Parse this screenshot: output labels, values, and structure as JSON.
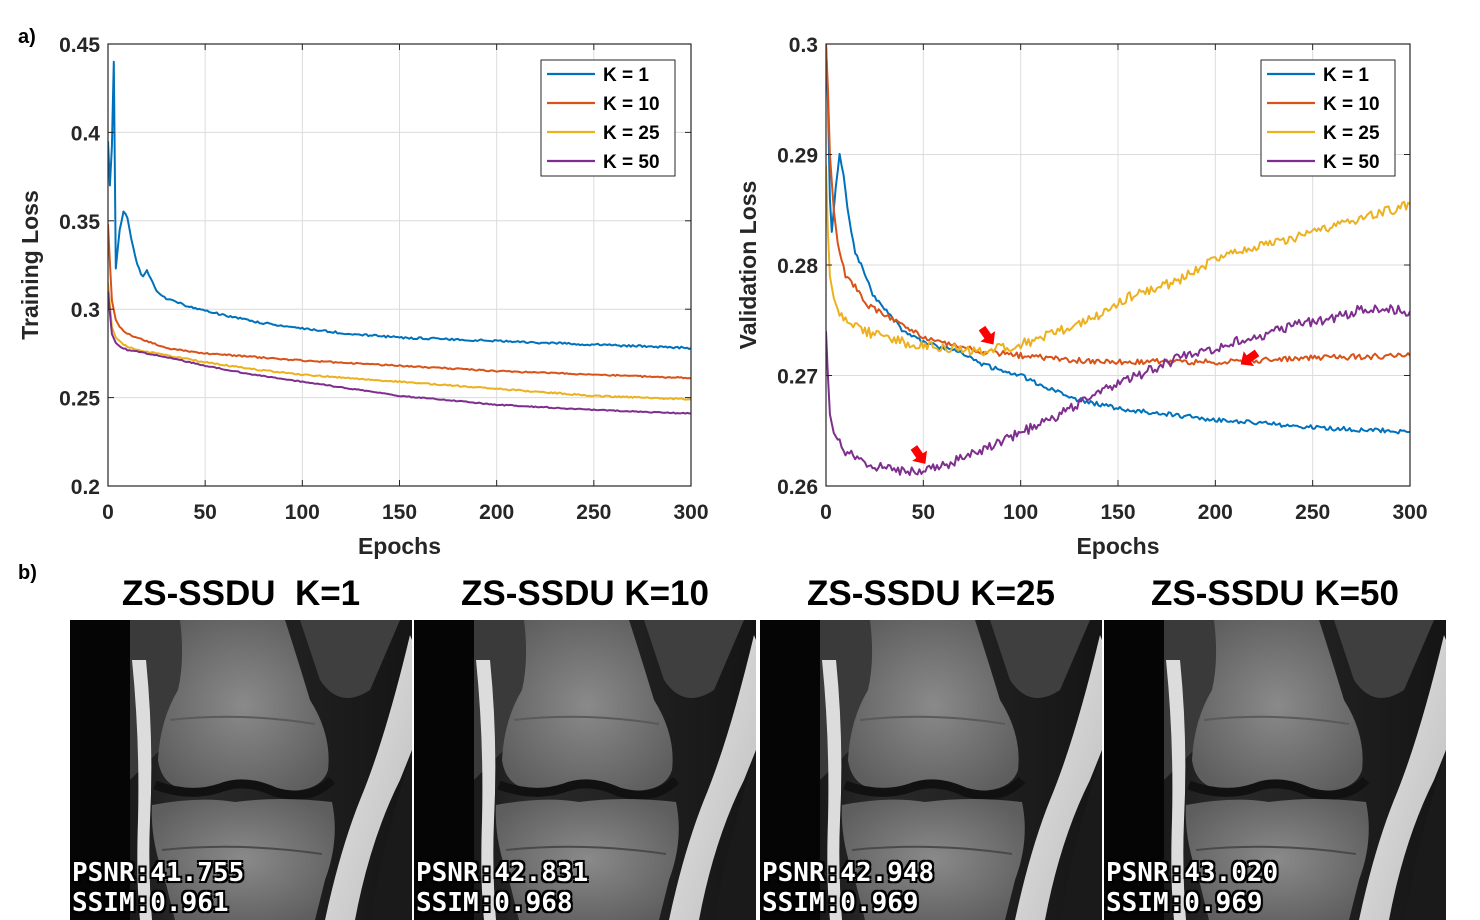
{
  "panels": {
    "a_label": "a)",
    "b_label": "b)"
  },
  "colors": {
    "k1": "#0072BD",
    "k10": "#D95319",
    "k25": "#EDB120",
    "k50": "#7E2F8E",
    "arrow": "#FF0000"
  },
  "chart_data": [
    {
      "type": "line",
      "xlabel": "Epochs",
      "ylabel": "Training  Loss",
      "xlim": [
        0,
        300
      ],
      "ylim": [
        0.2,
        0.45
      ],
      "xticks": [
        0,
        50,
        100,
        150,
        200,
        250,
        300
      ],
      "yticks": [
        0.2,
        0.25,
        0.3,
        0.35,
        0.4,
        0.45
      ],
      "ytick_labels": [
        "0.2",
        "0.25",
        "0.3",
        "0.35",
        "0.4",
        "0.45"
      ],
      "grid": true,
      "legend": "top-right",
      "series": [
        {
          "name": "K = 1",
          "color": "#0072BD",
          "x": [
            0,
            1,
            2,
            3,
            4,
            6,
            8,
            10,
            12,
            15,
            18,
            20,
            25,
            30,
            40,
            50,
            75,
            100,
            125,
            150,
            200,
            250,
            300
          ],
          "y": [
            0.395,
            0.37,
            0.392,
            0.44,
            0.323,
            0.345,
            0.355,
            0.352,
            0.34,
            0.325,
            0.318,
            0.322,
            0.31,
            0.306,
            0.302,
            0.299,
            0.293,
            0.289,
            0.286,
            0.284,
            0.282,
            0.28,
            0.278
          ]
        },
        {
          "name": "K = 10",
          "color": "#D95319",
          "x": [
            0,
            2,
            4,
            6,
            8,
            10,
            15,
            20,
            30,
            50,
            75,
            100,
            150,
            200,
            250,
            300
          ],
          "y": [
            0.348,
            0.305,
            0.294,
            0.29,
            0.288,
            0.286,
            0.284,
            0.282,
            0.278,
            0.275,
            0.273,
            0.271,
            0.268,
            0.265,
            0.263,
            0.261
          ]
        },
        {
          "name": "K = 25",
          "color": "#EDB120",
          "x": [
            0,
            2,
            4,
            6,
            8,
            10,
            15,
            20,
            30,
            50,
            75,
            100,
            150,
            200,
            250,
            300
          ],
          "y": [
            0.315,
            0.29,
            0.284,
            0.282,
            0.28,
            0.279,
            0.277,
            0.276,
            0.274,
            0.27,
            0.266,
            0.263,
            0.259,
            0.255,
            0.251,
            0.249
          ]
        },
        {
          "name": "K = 50",
          "color": "#7E2F8E",
          "x": [
            0,
            2,
            4,
            6,
            8,
            10,
            15,
            20,
            30,
            50,
            75,
            100,
            150,
            200,
            250,
            300
          ],
          "y": [
            0.31,
            0.286,
            0.281,
            0.279,
            0.278,
            0.277,
            0.276,
            0.275,
            0.273,
            0.268,
            0.263,
            0.259,
            0.251,
            0.246,
            0.243,
            0.241
          ]
        }
      ]
    },
    {
      "type": "line",
      "xlabel": "Epochs",
      "ylabel": "Validation  Loss",
      "xlim": [
        0,
        300
      ],
      "ylim": [
        0.26,
        0.3
      ],
      "xticks": [
        0,
        50,
        100,
        150,
        200,
        250,
        300
      ],
      "yticks": [
        0.26,
        0.27,
        0.28,
        0.29,
        0.3
      ],
      "ytick_labels": [
        "0.26",
        "0.27",
        "0.28",
        "0.29",
        "0.3"
      ],
      "grid": true,
      "legend": "top-right",
      "series": [
        {
          "name": "K = 1",
          "color": "#0072BD",
          "x": [
            0,
            1,
            2,
            3,
            5,
            7,
            9,
            12,
            15,
            18,
            20,
            25,
            30,
            35,
            40,
            50,
            60,
            70,
            80,
            90,
            100,
            125,
            150,
            200,
            250,
            300
          ],
          "y": [
            0.3,
            0.295,
            0.286,
            0.283,
            0.287,
            0.29,
            0.288,
            0.284,
            0.281,
            0.28,
            0.279,
            0.277,
            0.276,
            0.275,
            0.274,
            0.273,
            0.2725,
            0.272,
            0.271,
            0.2705,
            0.27,
            0.268,
            0.267,
            0.266,
            0.2653,
            0.2649
          ]
        },
        {
          "name": "K = 10",
          "color": "#D95319",
          "x": [
            0,
            1,
            2,
            4,
            6,
            10,
            15,
            20,
            30,
            40,
            50,
            60,
            70,
            80,
            100,
            125,
            150,
            175,
            200,
            225,
            250,
            275,
            300
          ],
          "y": [
            0.3,
            0.296,
            0.29,
            0.285,
            0.282,
            0.279,
            0.278,
            0.2765,
            0.2755,
            0.2745,
            0.2735,
            0.273,
            0.2725,
            0.2722,
            0.2718,
            0.2714,
            0.2712,
            0.2713,
            0.2712,
            0.2714,
            0.2716,
            0.2717,
            0.2718
          ]
        },
        {
          "name": "K = 25",
          "color": "#EDB120",
          "x": [
            0,
            1,
            2,
            4,
            6,
            8,
            10,
            15,
            20,
            30,
            40,
            50,
            60,
            70,
            80,
            100,
            120,
            140,
            160,
            180,
            200,
            220,
            240,
            260,
            280,
            300
          ],
          "y": [
            0.289,
            0.283,
            0.279,
            0.277,
            0.276,
            0.2755,
            0.275,
            0.2745,
            0.274,
            0.2735,
            0.273,
            0.2728,
            0.2725,
            0.2723,
            0.2722,
            0.2728,
            0.274,
            0.2755,
            0.2775,
            0.2785,
            0.2805,
            0.2815,
            0.2825,
            0.2835,
            0.2845,
            0.2855
          ]
        },
        {
          "name": "K = 50",
          "color": "#7E2F8E",
          "x": [
            0,
            1,
            2,
            4,
            6,
            8,
            10,
            15,
            20,
            25,
            30,
            40,
            45,
            50,
            60,
            70,
            80,
            100,
            120,
            140,
            160,
            180,
            200,
            220,
            240,
            260,
            280,
            300
          ],
          "y": [
            0.274,
            0.27,
            0.2665,
            0.2648,
            0.2642,
            0.2635,
            0.2632,
            0.2625,
            0.262,
            0.2618,
            0.2616,
            0.2614,
            0.2613,
            0.2614,
            0.2618,
            0.2625,
            0.2632,
            0.2648,
            0.2665,
            0.2685,
            0.27,
            0.2715,
            0.2725,
            0.2735,
            0.2745,
            0.2752,
            0.2762,
            0.2758
          ]
        }
      ],
      "annotations": [
        {
          "type": "arrow",
          "x": 83,
          "y": 0.2723,
          "color": "#FF0000"
        },
        {
          "type": "arrow",
          "x": 211,
          "y": 0.2712,
          "color": "#FF0000"
        },
        {
          "type": "arrow",
          "x": 48,
          "y": 0.2615,
          "color": "#FF0000"
        }
      ]
    }
  ],
  "images": [
    {
      "title": "ZS-SSDU  K=1",
      "psnr": "PSNR:41.755",
      "ssim": "SSIM:0.961"
    },
    {
      "title": "ZS-SSDU K=10",
      "psnr": "PSNR:42.831",
      "ssim": "SSIM:0.968"
    },
    {
      "title": "ZS-SSDU K=25",
      "psnr": "PSNR:42.948",
      "ssim": "SSIM:0.969"
    },
    {
      "title": "ZS-SSDU K=50",
      "psnr": "PSNR:43.020",
      "ssim": "SSIM:0.969"
    }
  ]
}
